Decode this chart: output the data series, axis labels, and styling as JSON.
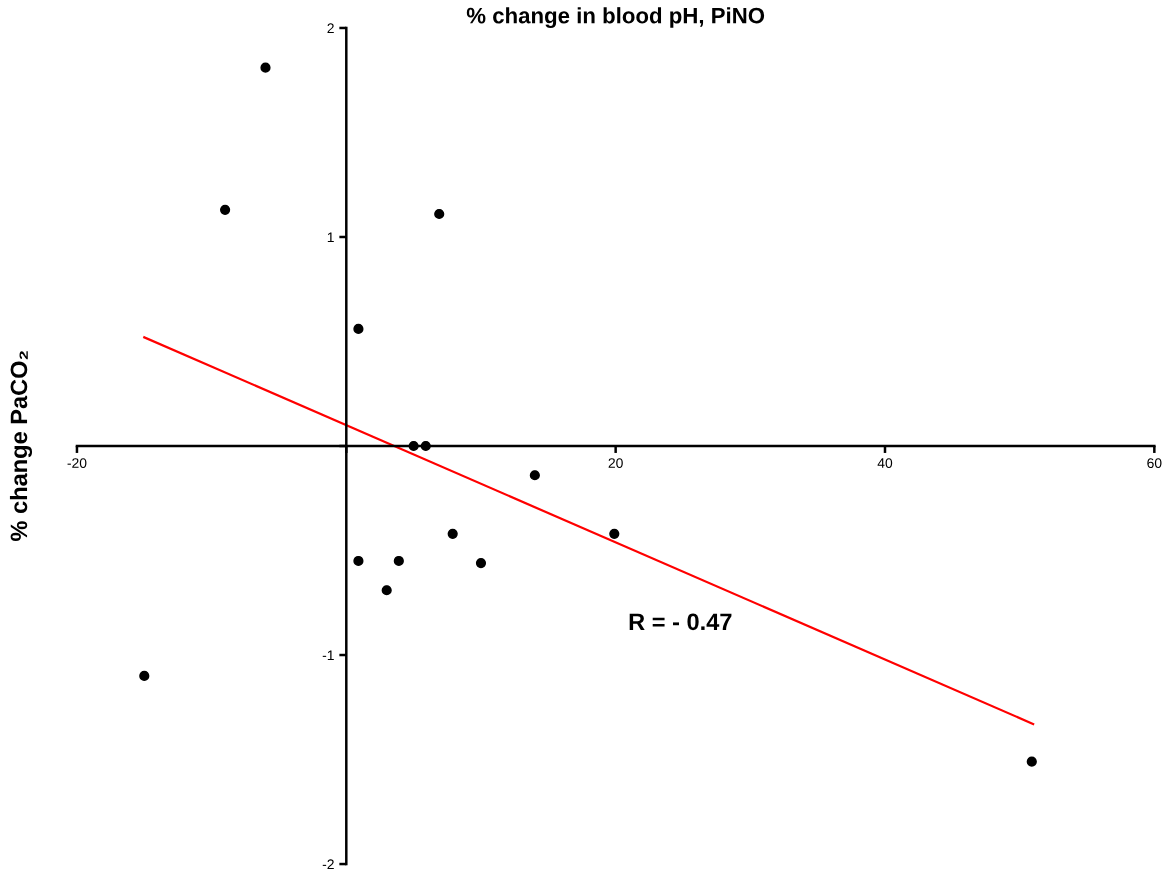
{
  "chart_data": {
    "type": "scatter",
    "title": "% change in blood pH, PiNO",
    "ylabel": "% change PaCO₂",
    "annotations": [
      "R = - 0.47"
    ],
    "series": [
      {
        "color": "#000000",
        "marker": "circle",
        "x": [
          -15,
          -9,
          -6,
          0.9,
          0.9,
          3,
          3.9,
          5,
          5.9,
          6.9,
          7.9,
          10,
          14,
          19.9,
          50.9
        ],
        "values": [
          -1.1,
          1.13,
          1.81,
          0.56,
          -0.55,
          -0.69,
          -0.55,
          0,
          0,
          1.11,
          -0.42,
          -0.56,
          -0.14,
          -0.42,
          -1.51
        ]
      },
      {
        "type": "line",
        "color": "#ff0000",
        "marker": "none",
        "line_style": "solid",
        "x": [
          -15,
          51
        ],
        "values": [
          0.52,
          -1.33
        ]
      }
    ],
    "xlim": [
      -20,
      60
    ],
    "xticks": [
      -20,
      {
        "value": 0,
        "label": null
      },
      20,
      40,
      60
    ],
    "ylim": [
      -2,
      2
    ],
    "yticks": [
      -2,
      -1,
      {
        "value": 0,
        "label": null
      },
      1,
      2
    ],
    "grid": false,
    "legend": false
  }
}
